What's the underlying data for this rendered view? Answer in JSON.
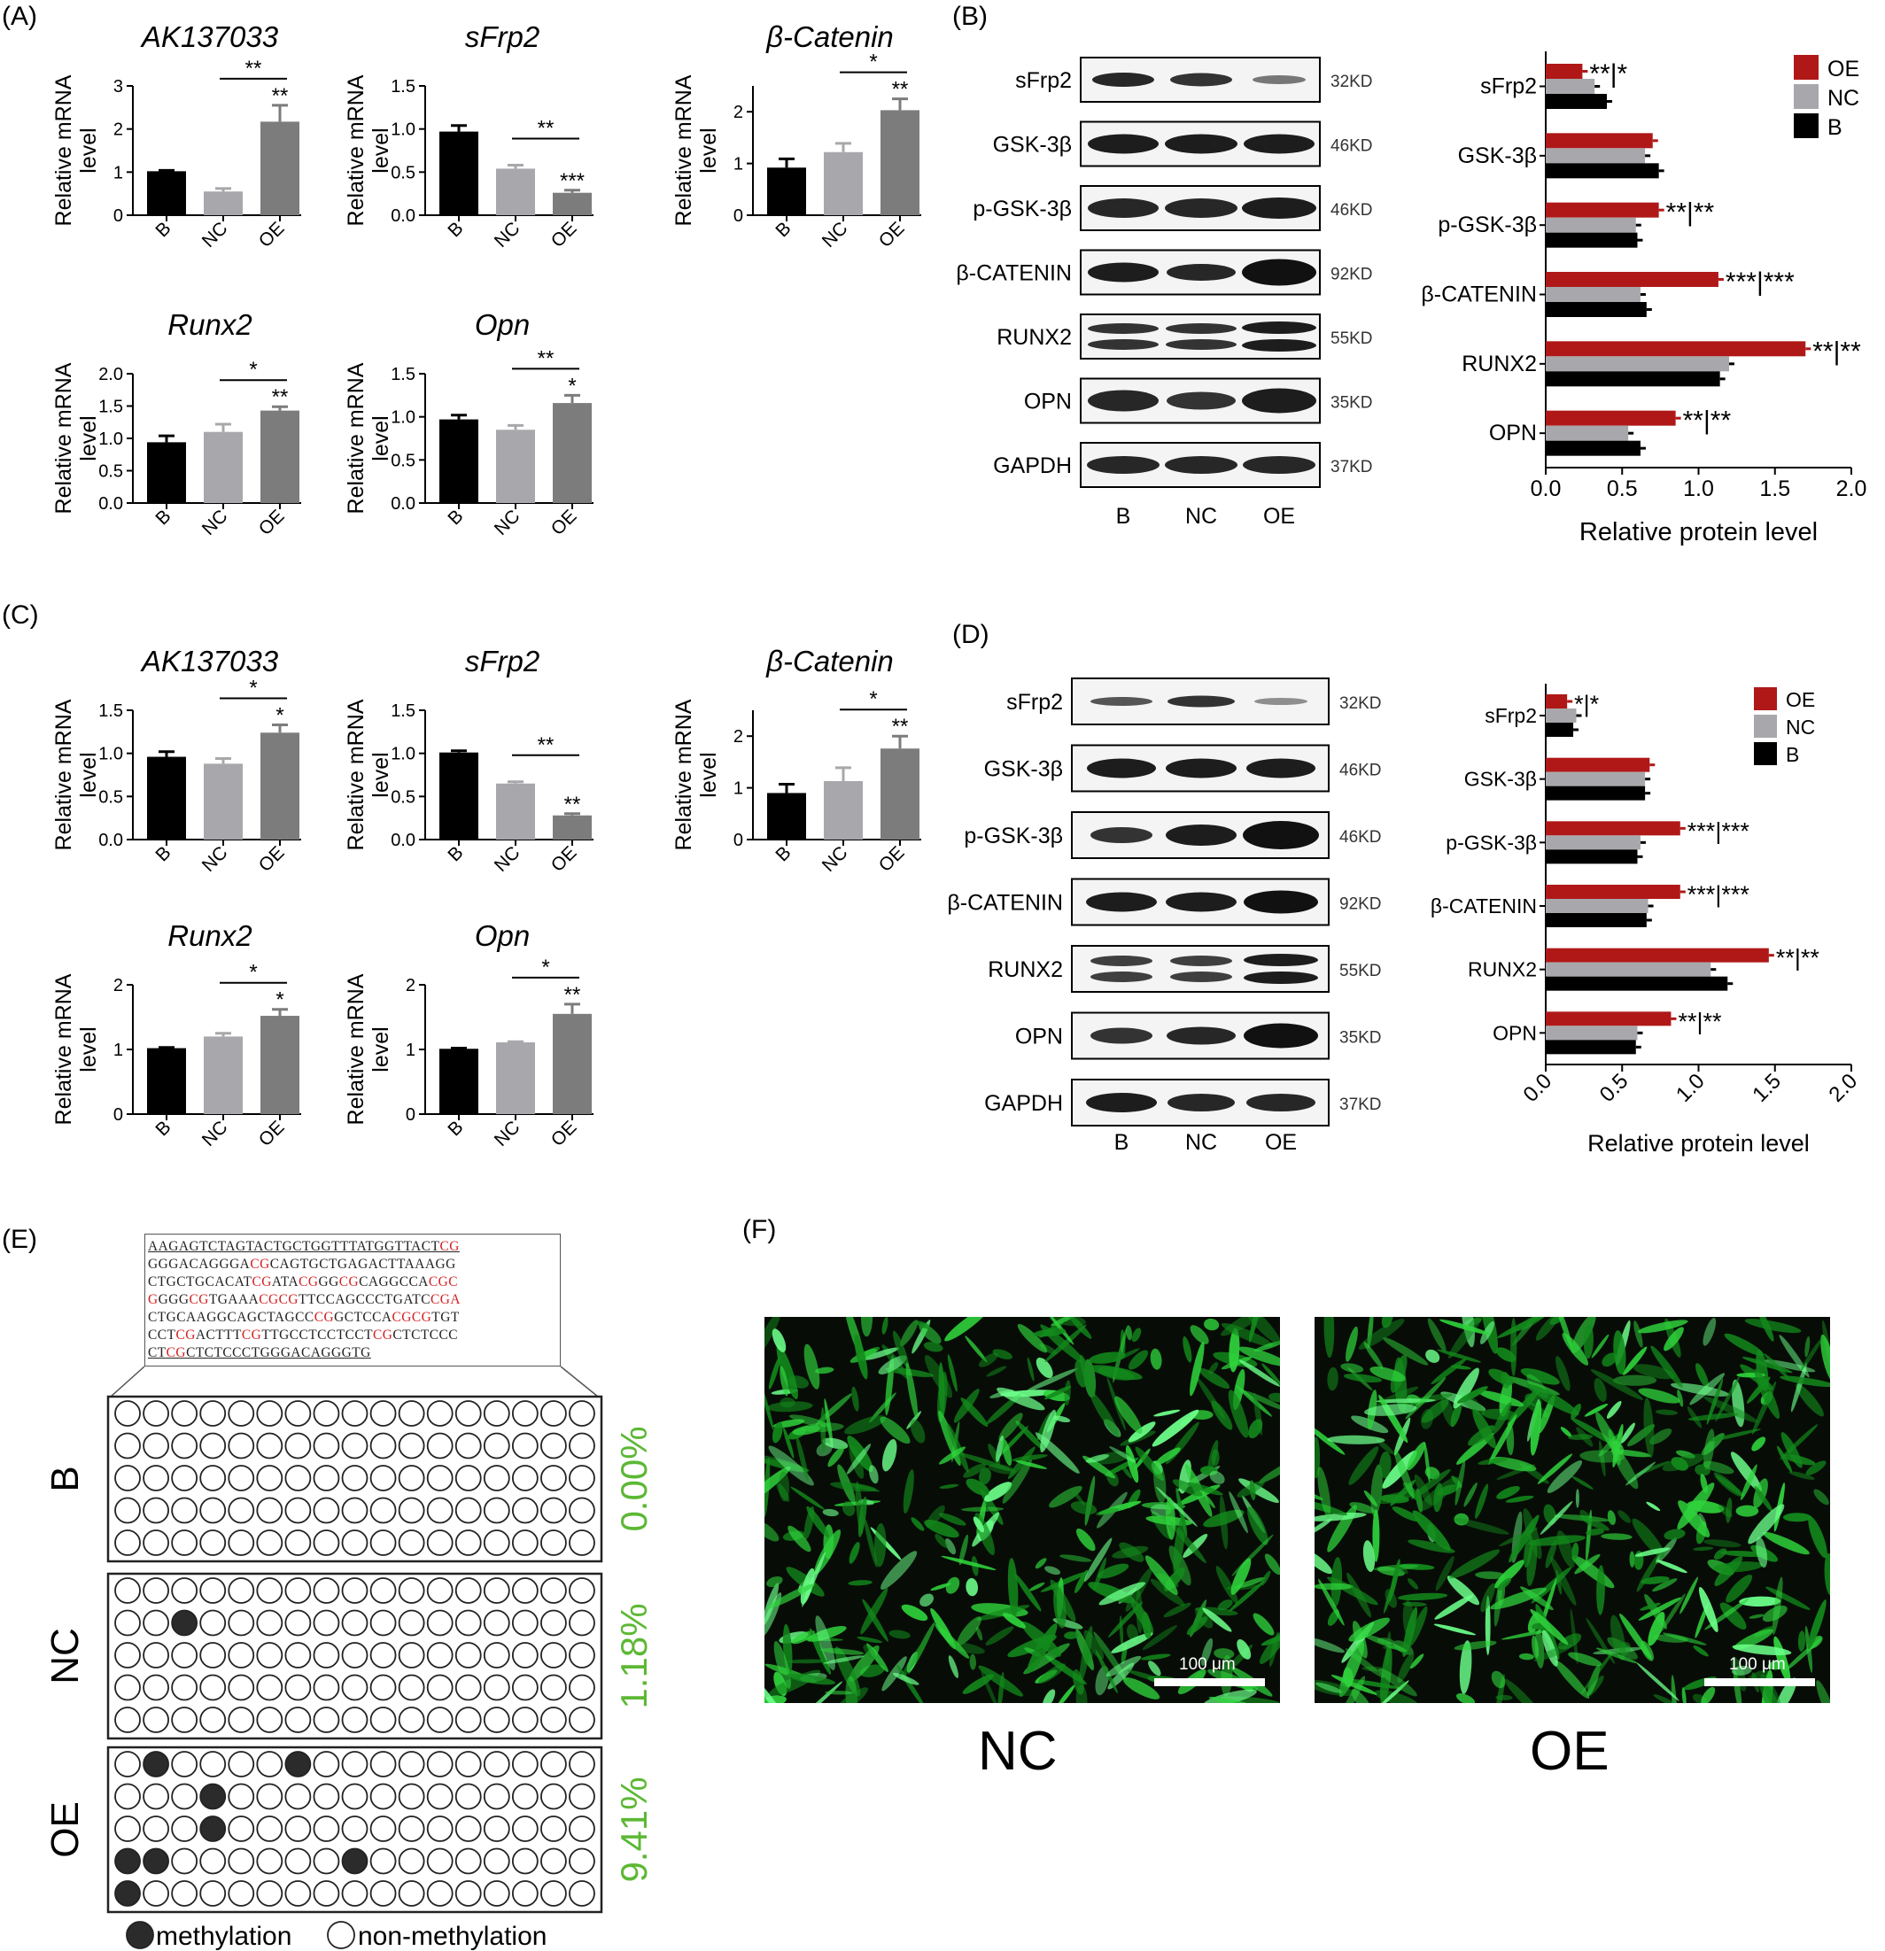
{
  "labels": {
    "A": "(A)",
    "B": "(B)",
    "C": "(C)",
    "D": "(D)",
    "E": "(E)",
    "F": "(F)"
  },
  "common": {
    "ylabel_line1": "Relative mRNA",
    "ylabel_line2": "level",
    "groups": [
      "B",
      "NC",
      "OE"
    ],
    "group_colors": [
      "#000000",
      "#a8a8ac",
      "#7c7c7c"
    ],
    "protein_xlabel": "Relative protein level",
    "protein_colors": {
      "OE": "#b01818",
      "NC": "#a8a8ac",
      "B": "#000000"
    }
  },
  "chart_data": [
    {
      "panel": "A",
      "type": "bar",
      "title": "AK137033",
      "categories": [
        "B",
        "NC",
        "OE"
      ],
      "values": [
        1.02,
        0.55,
        2.17
      ],
      "errors": [
        0.02,
        0.07,
        0.38
      ],
      "ylim": [
        0,
        3
      ],
      "yticks": [
        "0",
        "1",
        "2",
        "3"
      ],
      "sig": [
        "",
        "",
        "**"
      ],
      "bracket": "**"
    },
    {
      "panel": "A",
      "type": "bar",
      "title": "sFrp2",
      "categories": [
        "B",
        "NC",
        "OE"
      ],
      "values": [
        0.97,
        0.54,
        0.26
      ],
      "errors": [
        0.07,
        0.04,
        0.03
      ],
      "ylim": [
        0,
        1.5
      ],
      "yticks": [
        "0.0",
        "0.5",
        "1.0",
        "1.5"
      ],
      "sig": [
        "",
        "",
        "***"
      ],
      "bracket": "**"
    },
    {
      "panel": "A",
      "type": "bar",
      "title": "β-Catenin",
      "categories": [
        "B",
        "NC",
        "OE"
      ],
      "values": [
        0.92,
        1.22,
        2.03
      ],
      "errors": [
        0.17,
        0.17,
        0.22
      ],
      "ylim": [
        0,
        2.5
      ],
      "yticks": [
        "0",
        "1",
        "2"
      ],
      "sig": [
        "",
        "",
        "**"
      ],
      "bracket": "*"
    },
    {
      "panel": "A",
      "type": "bar",
      "title": "Runx2",
      "categories": [
        "B",
        "NC",
        "OE"
      ],
      "values": [
        0.94,
        1.1,
        1.43
      ],
      "errors": [
        0.1,
        0.12,
        0.06
      ],
      "ylim": [
        0,
        2.0
      ],
      "yticks": [
        "0.0",
        "0.5",
        "1.0",
        "1.5",
        "2.0"
      ],
      "sig": [
        "",
        "",
        "**"
      ],
      "bracket": "*"
    },
    {
      "panel": "A",
      "type": "bar",
      "title": "Opn",
      "categories": [
        "B",
        "NC",
        "OE"
      ],
      "values": [
        0.97,
        0.85,
        1.16
      ],
      "errors": [
        0.05,
        0.05,
        0.09
      ],
      "ylim": [
        0,
        1.5
      ],
      "yticks": [
        "0.0",
        "0.5",
        "1.0",
        "1.5"
      ],
      "sig": [
        "",
        "",
        "*"
      ],
      "bracket": "**"
    },
    {
      "panel": "C",
      "type": "bar",
      "title": "AK137033",
      "categories": [
        "B",
        "NC",
        "OE"
      ],
      "values": [
        0.96,
        0.88,
        1.24
      ],
      "errors": [
        0.06,
        0.06,
        0.09
      ],
      "ylim": [
        0,
        1.5
      ],
      "yticks": [
        "0.0",
        "0.5",
        "1.0",
        "1.5"
      ],
      "sig": [
        "",
        "",
        "*"
      ],
      "bracket": "*"
    },
    {
      "panel": "C",
      "type": "bar",
      "title": "sFrp2",
      "categories": [
        "B",
        "NC",
        "OE"
      ],
      "values": [
        1.01,
        0.65,
        0.28
      ],
      "errors": [
        0.02,
        0.02,
        0.02
      ],
      "ylim": [
        0,
        1.5
      ],
      "yticks": [
        "0.0",
        "0.5",
        "1.0",
        "1.5"
      ],
      "sig": [
        "",
        "",
        "**"
      ],
      "bracket": "**"
    },
    {
      "panel": "C",
      "type": "bar",
      "title": "β-Catenin",
      "categories": [
        "B",
        "NC",
        "OE"
      ],
      "values": [
        0.9,
        1.13,
        1.76
      ],
      "errors": [
        0.17,
        0.26,
        0.24
      ],
      "ylim": [
        0,
        2.5
      ],
      "yticks": [
        "0",
        "1",
        "2"
      ],
      "sig": [
        "",
        "",
        "**"
      ],
      "bracket": "*"
    },
    {
      "panel": "C",
      "type": "bar",
      "title": "Runx2",
      "categories": [
        "B",
        "NC",
        "OE"
      ],
      "values": [
        1.02,
        1.2,
        1.52
      ],
      "errors": [
        0.01,
        0.05,
        0.1
      ],
      "ylim": [
        0,
        2
      ],
      "yticks": [
        "0",
        "1",
        "2"
      ],
      "sig": [
        "",
        "",
        "*"
      ],
      "bracket": "*"
    },
    {
      "panel": "C",
      "type": "bar",
      "title": "Opn",
      "categories": [
        "B",
        "NC",
        "OE"
      ],
      "values": [
        1.01,
        1.11,
        1.55
      ],
      "errors": [
        0.01,
        0.01,
        0.15
      ],
      "ylim": [
        0,
        2
      ],
      "yticks": [
        "0",
        "1",
        "2"
      ],
      "sig": [
        "",
        "",
        "**"
      ],
      "bracket": "*"
    },
    {
      "panel": "B",
      "type": "bar",
      "orientation": "horizontal",
      "categories": [
        "sFrp2",
        "GSK-3β",
        "p-GSK-3β",
        "β-CATENIN",
        "RUNX2",
        "OPN"
      ],
      "series": [
        {
          "name": "OE",
          "values": [
            0.24,
            0.7,
            0.74,
            1.13,
            1.7,
            0.85
          ]
        },
        {
          "name": "NC",
          "values": [
            0.32,
            0.65,
            0.59,
            0.62,
            1.2,
            0.54
          ]
        },
        {
          "name": "B",
          "values": [
            0.4,
            0.74,
            0.6,
            0.66,
            1.14,
            0.62
          ]
        }
      ],
      "sig": [
        "**|*",
        "",
        "**|**",
        "***|***",
        "**|**",
        "**|**"
      ],
      "xlim": [
        0,
        2.0
      ],
      "xticks": [
        "0.0",
        "0.5",
        "1.0",
        "1.5",
        "2.0"
      ],
      "xlabel": "Relative protein level",
      "legend": "top-right"
    },
    {
      "panel": "D",
      "type": "bar",
      "orientation": "horizontal",
      "categories": [
        "sFrp2",
        "GSK-3β",
        "p-GSK-3β",
        "β-CATENIN",
        "RUNX2",
        "OPN"
      ],
      "series": [
        {
          "name": "OE",
          "values": [
            0.14,
            0.68,
            0.88,
            0.88,
            1.46,
            0.82
          ]
        },
        {
          "name": "NC",
          "values": [
            0.2,
            0.65,
            0.62,
            0.67,
            1.08,
            0.6
          ]
        },
        {
          "name": "B",
          "values": [
            0.18,
            0.65,
            0.6,
            0.66,
            1.19,
            0.59
          ]
        }
      ],
      "sig": [
        "*|*",
        "",
        "***|***",
        "***|***",
        "**|**",
        "**|**"
      ],
      "xlim": [
        0,
        2.0
      ],
      "xticks": [
        "0.0",
        "0.5",
        "1.0",
        "1.5",
        "2.0"
      ],
      "xlabel": "Relative protein level",
      "legend": "top-right"
    }
  ],
  "blots": {
    "B": {
      "rows": [
        "sFrp2",
        "GSK-3β",
        "p-GSK-3β",
        "β-CATENIN",
        "RUNX2",
        "OPN",
        "GAPDH"
      ],
      "sizes": [
        "32KD",
        "46KD",
        "46KD",
        "92KD",
        "55KD",
        "35KD",
        "37KD"
      ],
      "lanes": [
        "B",
        "NC",
        "OE"
      ]
    },
    "D": {
      "rows": [
        "sFrp2",
        "GSK-3β",
        "p-GSK-3β",
        "β-CATENIN",
        "RUNX2",
        "OPN",
        "GAPDH"
      ],
      "sizes": [
        "32KD",
        "46KD",
        "46KD",
        "92KD",
        "55KD",
        "35KD",
        "37KD"
      ],
      "lanes": [
        "B",
        "NC",
        "OE"
      ]
    }
  },
  "methylation": {
    "sequence_lines": [
      [
        [
          "AAGAGTCTAGTACTGCTGGTTTATGGTTACT",
          ""
        ],
        [
          "CG",
          "cg"
        ]
      ],
      [
        [
          "GGGACAGGGA",
          ""
        ],
        [
          "CG",
          "cg"
        ],
        [
          "CAGTGCTGAGACTTAAAGG",
          ""
        ]
      ],
      [
        [
          "CTGCTGCACAT",
          ""
        ],
        [
          "CG",
          "cg"
        ],
        [
          "ATA",
          ""
        ],
        [
          "CG",
          "cg"
        ],
        [
          "GG",
          ""
        ],
        [
          "CG",
          "cg"
        ],
        [
          "CAGGCCA",
          ""
        ],
        [
          "CGC",
          "cg"
        ]
      ],
      [
        [
          "G",
          "cg"
        ],
        [
          "GGG",
          ""
        ],
        [
          "CG",
          "cg"
        ],
        [
          "TGAAA",
          ""
        ],
        [
          "CGCG",
          "cg"
        ],
        [
          "TTCCAGCCCTGATC",
          ""
        ],
        [
          "CGA",
          "cg"
        ]
      ],
      [
        [
          "CTGCAAGGCAGCTAGCC",
          ""
        ],
        [
          "CG",
          "cg"
        ],
        [
          "GCTCCA",
          ""
        ],
        [
          "CGCG",
          "cg"
        ],
        [
          "TGT",
          ""
        ]
      ],
      [
        [
          "CCT",
          ""
        ],
        [
          "CG",
          "cg"
        ],
        [
          "ACTTT",
          ""
        ],
        [
          "CG",
          "cg"
        ],
        [
          "TTGCCTCCTCCT",
          ""
        ],
        [
          "CG",
          "cg"
        ],
        [
          "CTCTCCC",
          ""
        ]
      ],
      [
        [
          "CT",
          ""
        ],
        [
          "CG",
          "cg"
        ],
        [
          "CTCTCCCTGGGACAGGGTG",
          ""
        ]
      ]
    ],
    "groups": [
      {
        "name": "B",
        "percent": "0.00%",
        "filled": []
      },
      {
        "name": "NC",
        "percent": "1.18%",
        "filled": [
          [
            1,
            2
          ]
        ]
      },
      {
        "name": "OE",
        "percent": "9.41%",
        "filled": [
          [
            0,
            1
          ],
          [
            0,
            6
          ],
          [
            1,
            3
          ],
          [
            2,
            3
          ],
          [
            3,
            0
          ],
          [
            3,
            1
          ],
          [
            3,
            8
          ],
          [
            4,
            0
          ]
        ]
      }
    ],
    "rows": 5,
    "cols": 17,
    "legend_methylation": "methylation",
    "legend_non": "non-methylation",
    "percent_color": "#5cb835"
  },
  "fluorescence": {
    "images": [
      {
        "caption": "NC",
        "scale": "100 μm"
      },
      {
        "caption": "OE",
        "scale": "100 μm"
      }
    ]
  }
}
